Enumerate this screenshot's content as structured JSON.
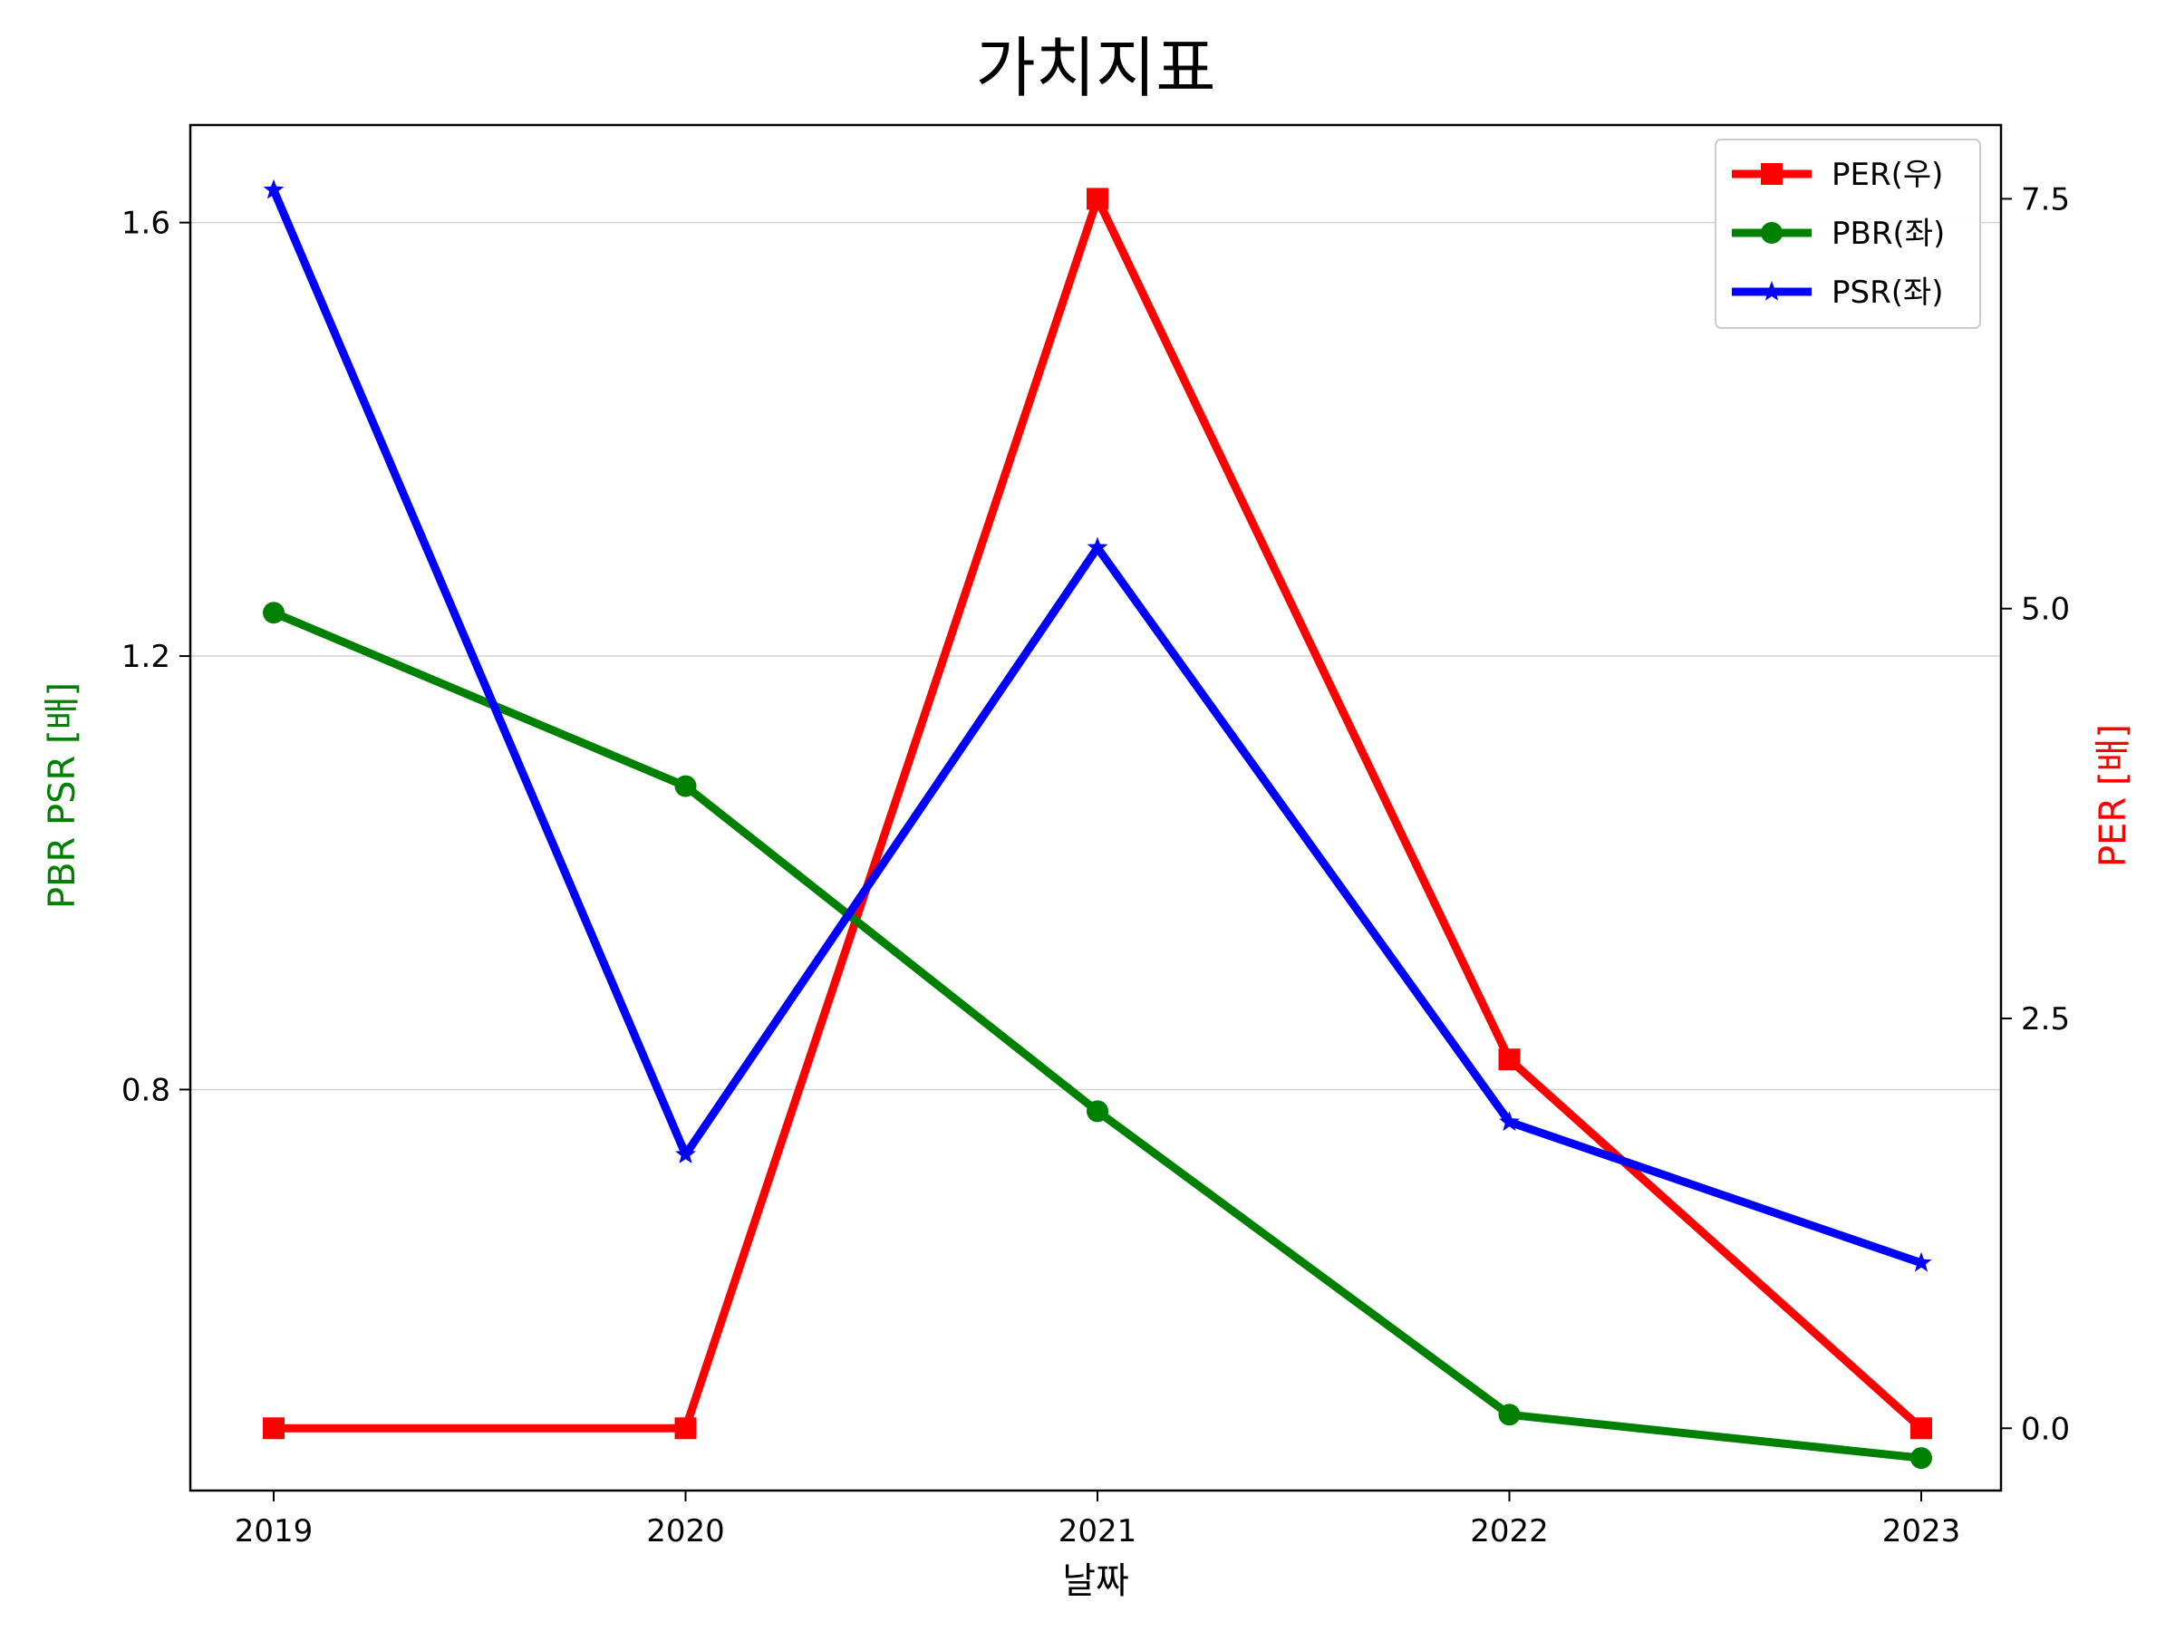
{
  "chart_data": {
    "type": "line",
    "title": "가치지표",
    "xlabel": "날짜",
    "ylabel_left": "PBR PSR [배]",
    "ylabel_right": "PER [배]",
    "categories": [
      "2019",
      "2020",
      "2021",
      "2022",
      "2023"
    ],
    "left_ylim": [
      0.43,
      1.69
    ],
    "right_ylim": [
      -0.38,
      7.95
    ],
    "left_ticks": [
      {
        "value": 0.8,
        "label": "0.8"
      },
      {
        "value": 1.2,
        "label": "1.2"
      },
      {
        "value": 1.6,
        "label": "1.6"
      }
    ],
    "right_ticks": [
      {
        "value": 0.0,
        "label": "0.0"
      },
      {
        "value": 2.5,
        "label": "2.5"
      },
      {
        "value": 5.0,
        "label": "5.0"
      },
      {
        "value": 7.5,
        "label": "7.5"
      }
    ],
    "grid": "horizontal (left axis)",
    "legend_position": "top-right",
    "series": [
      {
        "name": "PER(우)",
        "axis": "right",
        "color": "#ff0000",
        "marker": "square",
        "values": [
          0.0,
          0.0,
          7.5,
          2.25,
          0.0
        ]
      },
      {
        "name": "PBR(좌)",
        "axis": "left",
        "color": "#008000",
        "marker": "circle",
        "values": [
          1.24,
          1.08,
          0.78,
          0.5,
          0.46
        ]
      },
      {
        "name": "PSR(좌)",
        "axis": "left",
        "color": "#0000ff",
        "marker": "star",
        "values": [
          1.63,
          0.74,
          1.3,
          0.77,
          0.64
        ]
      }
    ]
  }
}
